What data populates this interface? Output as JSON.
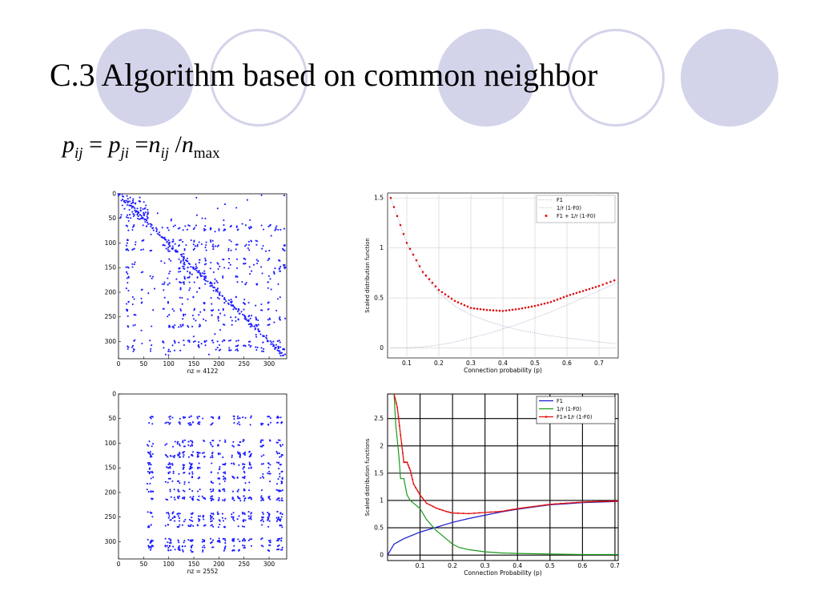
{
  "slide": {
    "title": "C.3 Algorithm based  on common neighbor"
  },
  "formula": {
    "p": "p",
    "ij": "ij",
    "eq": "=",
    "ji": "ji",
    "n": "n",
    "slash": "/",
    "max": "max"
  },
  "colors": {
    "circle": "#d3d3ea",
    "spy_dots": "#1a1aff",
    "f1": "#1a1acc",
    "inv": "#1a9a1a",
    "sum": "#e01010"
  },
  "chart_data": [
    {
      "type": "scatter",
      "subtype": "sparsity-pattern",
      "xlabel": "nz = 4122",
      "x_ticks": [
        "0",
        "50",
        "100",
        "150",
        "200",
        "250",
        "300"
      ],
      "y_ticks": [
        "0",
        "50",
        "100",
        "150",
        "200",
        "250",
        "300"
      ],
      "xlim": [
        0,
        335
      ],
      "ylim": [
        0,
        335
      ],
      "nz": 4122,
      "grid": false
    },
    {
      "type": "line",
      "ylabel": "Scaled distribution function",
      "xlabel": "Connection probability (p)",
      "x_ticks": [
        "0.1",
        "0.2",
        "0.3",
        "0.4",
        "0.5",
        "0.6",
        "0.7"
      ],
      "y_ticks": [
        "0",
        "0.5",
        "1",
        "1.5"
      ],
      "xlim": [
        0.04,
        0.76
      ],
      "ylim": [
        -0.1,
        1.55
      ],
      "grid": true,
      "legend_position": "top-right",
      "series": [
        {
          "name": "F1",
          "style": "thin-dotted",
          "x": [
            0.05,
            0.1,
            0.15,
            0.2,
            0.25,
            0.3,
            0.35,
            0.4,
            0.45,
            0.5,
            0.55,
            0.6,
            0.65,
            0.7,
            0.76
          ],
          "y": [
            0.0,
            0.0,
            0.01,
            0.03,
            0.06,
            0.1,
            0.14,
            0.19,
            0.24,
            0.3,
            0.36,
            0.43,
            0.5,
            0.57,
            0.66
          ]
        },
        {
          "name": "1/r (1-F0)",
          "style": "thin-dotted",
          "x": [
            0.05,
            0.1,
            0.15,
            0.2,
            0.25,
            0.3,
            0.35,
            0.4,
            0.45,
            0.5,
            0.55,
            0.6,
            0.65,
            0.7,
            0.76
          ],
          "y": [
            1.5,
            1.05,
            0.75,
            0.55,
            0.42,
            0.33,
            0.27,
            0.22,
            0.18,
            0.15,
            0.12,
            0.1,
            0.08,
            0.06,
            0.04
          ]
        },
        {
          "name": "F1 + 1/r (1-F0)",
          "style": "red-dots",
          "x": [
            0.05,
            0.1,
            0.15,
            0.2,
            0.25,
            0.3,
            0.35,
            0.4,
            0.45,
            0.5,
            0.55,
            0.6,
            0.65,
            0.7,
            0.76
          ],
          "y": [
            1.5,
            1.05,
            0.76,
            0.58,
            0.47,
            0.4,
            0.38,
            0.37,
            0.39,
            0.42,
            0.46,
            0.52,
            0.57,
            0.62,
            0.69
          ]
        }
      ]
    },
    {
      "type": "scatter",
      "subtype": "sparsity-pattern",
      "xlabel": "nz = 2552",
      "x_ticks": [
        "0",
        "50",
        "100",
        "150",
        "200",
        "250",
        "300"
      ],
      "y_ticks": [
        "0",
        "50",
        "100",
        "150",
        "200",
        "250",
        "300"
      ],
      "xlim": [
        0,
        335
      ],
      "ylim": [
        0,
        335
      ],
      "nz": 2552,
      "grid": false
    },
    {
      "type": "line",
      "ylabel": "Scaled distribution functions",
      "xlabel": "Connection Probability (p)",
      "x_ticks": [
        "0.1",
        "0.2",
        "0.3",
        "0.4",
        "0.5",
        "0.6",
        "0.7"
      ],
      "y_ticks": [
        "0",
        "0.5",
        "1",
        "1.5",
        "2",
        "2.5"
      ],
      "xlim": [
        0.0,
        0.71
      ],
      "ylim": [
        -0.1,
        2.95
      ],
      "grid": true,
      "legend_position": "top-right",
      "series": [
        {
          "name": "F1",
          "style": "blue",
          "x": [
            0.0,
            0.02,
            0.05,
            0.1,
            0.15,
            0.2,
            0.25,
            0.3,
            0.35,
            0.4,
            0.45,
            0.5,
            0.55,
            0.6,
            0.65,
            0.7,
            0.71
          ],
          "y": [
            0.0,
            0.2,
            0.3,
            0.42,
            0.51,
            0.6,
            0.67,
            0.73,
            0.79,
            0.84,
            0.88,
            0.92,
            0.94,
            0.96,
            0.97,
            0.98,
            0.98
          ]
        },
        {
          "name": "1/r (1-F0)",
          "style": "green",
          "x": [
            0.02,
            0.025,
            0.03,
            0.035,
            0.04,
            0.05,
            0.06,
            0.07,
            0.08,
            0.1,
            0.12,
            0.15,
            0.18,
            0.2,
            0.22,
            0.25,
            0.3,
            0.35,
            0.4,
            0.5,
            0.6,
            0.71
          ],
          "y": [
            2.95,
            2.4,
            2.1,
            1.8,
            1.4,
            1.4,
            1.1,
            1.0,
            0.95,
            0.85,
            0.65,
            0.45,
            0.3,
            0.2,
            0.14,
            0.1,
            0.06,
            0.04,
            0.03,
            0.02,
            0.01,
            0.01
          ]
        },
        {
          "name": "F1+1/r (1-F0)",
          "style": "red",
          "x": [
            0.02,
            0.03,
            0.04,
            0.05,
            0.06,
            0.07,
            0.08,
            0.1,
            0.12,
            0.15,
            0.18,
            0.2,
            0.25,
            0.3,
            0.35,
            0.4,
            0.45,
            0.5,
            0.55,
            0.6,
            0.65,
            0.7,
            0.71
          ],
          "y": [
            2.95,
            2.7,
            2.2,
            1.7,
            1.7,
            1.55,
            1.3,
            1.1,
            0.95,
            0.86,
            0.8,
            0.77,
            0.76,
            0.78,
            0.8,
            0.85,
            0.89,
            0.93,
            0.95,
            0.97,
            0.98,
            0.99,
            0.99
          ]
        }
      ]
    }
  ]
}
